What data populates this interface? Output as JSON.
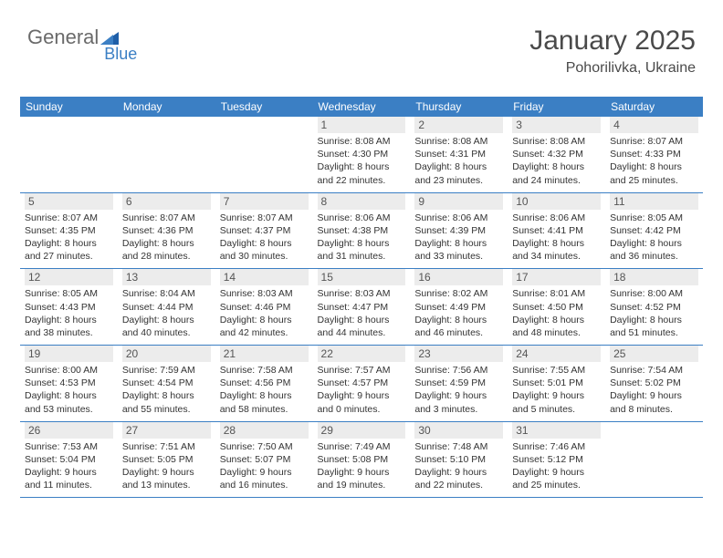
{
  "logo": {
    "text1": "General",
    "text2": "Blue"
  },
  "title": "January 2025",
  "location": "Pohorilivka, Ukraine",
  "colors": {
    "header_bg": "#3b7fc4",
    "header_fg": "#ffffff",
    "daynum_bg": "#ececec",
    "border": "#3b7fc4",
    "text": "#333333",
    "logo_gray": "#6a6a6a",
    "logo_blue": "#3b7fc4"
  },
  "dayHeaders": [
    "Sunday",
    "Monday",
    "Tuesday",
    "Wednesday",
    "Thursday",
    "Friday",
    "Saturday"
  ],
  "weeks": [
    [
      {
        "n": "",
        "l1": "",
        "l2": "",
        "l3": "",
        "l4": "",
        "empty": true
      },
      {
        "n": "",
        "l1": "",
        "l2": "",
        "l3": "",
        "l4": "",
        "empty": true
      },
      {
        "n": "",
        "l1": "",
        "l2": "",
        "l3": "",
        "l4": "",
        "empty": true
      },
      {
        "n": "1",
        "l1": "Sunrise: 8:08 AM",
        "l2": "Sunset: 4:30 PM",
        "l3": "Daylight: 8 hours",
        "l4": "and 22 minutes."
      },
      {
        "n": "2",
        "l1": "Sunrise: 8:08 AM",
        "l2": "Sunset: 4:31 PM",
        "l3": "Daylight: 8 hours",
        "l4": "and 23 minutes."
      },
      {
        "n": "3",
        "l1": "Sunrise: 8:08 AM",
        "l2": "Sunset: 4:32 PM",
        "l3": "Daylight: 8 hours",
        "l4": "and 24 minutes."
      },
      {
        "n": "4",
        "l1": "Sunrise: 8:07 AM",
        "l2": "Sunset: 4:33 PM",
        "l3": "Daylight: 8 hours",
        "l4": "and 25 minutes."
      }
    ],
    [
      {
        "n": "5",
        "l1": "Sunrise: 8:07 AM",
        "l2": "Sunset: 4:35 PM",
        "l3": "Daylight: 8 hours",
        "l4": "and 27 minutes."
      },
      {
        "n": "6",
        "l1": "Sunrise: 8:07 AM",
        "l2": "Sunset: 4:36 PM",
        "l3": "Daylight: 8 hours",
        "l4": "and 28 minutes."
      },
      {
        "n": "7",
        "l1": "Sunrise: 8:07 AM",
        "l2": "Sunset: 4:37 PM",
        "l3": "Daylight: 8 hours",
        "l4": "and 30 minutes."
      },
      {
        "n": "8",
        "l1": "Sunrise: 8:06 AM",
        "l2": "Sunset: 4:38 PM",
        "l3": "Daylight: 8 hours",
        "l4": "and 31 minutes."
      },
      {
        "n": "9",
        "l1": "Sunrise: 8:06 AM",
        "l2": "Sunset: 4:39 PM",
        "l3": "Daylight: 8 hours",
        "l4": "and 33 minutes."
      },
      {
        "n": "10",
        "l1": "Sunrise: 8:06 AM",
        "l2": "Sunset: 4:41 PM",
        "l3": "Daylight: 8 hours",
        "l4": "and 34 minutes."
      },
      {
        "n": "11",
        "l1": "Sunrise: 8:05 AM",
        "l2": "Sunset: 4:42 PM",
        "l3": "Daylight: 8 hours",
        "l4": "and 36 minutes."
      }
    ],
    [
      {
        "n": "12",
        "l1": "Sunrise: 8:05 AM",
        "l2": "Sunset: 4:43 PM",
        "l3": "Daylight: 8 hours",
        "l4": "and 38 minutes."
      },
      {
        "n": "13",
        "l1": "Sunrise: 8:04 AM",
        "l2": "Sunset: 4:44 PM",
        "l3": "Daylight: 8 hours",
        "l4": "and 40 minutes."
      },
      {
        "n": "14",
        "l1": "Sunrise: 8:03 AM",
        "l2": "Sunset: 4:46 PM",
        "l3": "Daylight: 8 hours",
        "l4": "and 42 minutes."
      },
      {
        "n": "15",
        "l1": "Sunrise: 8:03 AM",
        "l2": "Sunset: 4:47 PM",
        "l3": "Daylight: 8 hours",
        "l4": "and 44 minutes."
      },
      {
        "n": "16",
        "l1": "Sunrise: 8:02 AM",
        "l2": "Sunset: 4:49 PM",
        "l3": "Daylight: 8 hours",
        "l4": "and 46 minutes."
      },
      {
        "n": "17",
        "l1": "Sunrise: 8:01 AM",
        "l2": "Sunset: 4:50 PM",
        "l3": "Daylight: 8 hours",
        "l4": "and 48 minutes."
      },
      {
        "n": "18",
        "l1": "Sunrise: 8:00 AM",
        "l2": "Sunset: 4:52 PM",
        "l3": "Daylight: 8 hours",
        "l4": "and 51 minutes."
      }
    ],
    [
      {
        "n": "19",
        "l1": "Sunrise: 8:00 AM",
        "l2": "Sunset: 4:53 PM",
        "l3": "Daylight: 8 hours",
        "l4": "and 53 minutes."
      },
      {
        "n": "20",
        "l1": "Sunrise: 7:59 AM",
        "l2": "Sunset: 4:54 PM",
        "l3": "Daylight: 8 hours",
        "l4": "and 55 minutes."
      },
      {
        "n": "21",
        "l1": "Sunrise: 7:58 AM",
        "l2": "Sunset: 4:56 PM",
        "l3": "Daylight: 8 hours",
        "l4": "and 58 minutes."
      },
      {
        "n": "22",
        "l1": "Sunrise: 7:57 AM",
        "l2": "Sunset: 4:57 PM",
        "l3": "Daylight: 9 hours",
        "l4": "and 0 minutes."
      },
      {
        "n": "23",
        "l1": "Sunrise: 7:56 AM",
        "l2": "Sunset: 4:59 PM",
        "l3": "Daylight: 9 hours",
        "l4": "and 3 minutes."
      },
      {
        "n": "24",
        "l1": "Sunrise: 7:55 AM",
        "l2": "Sunset: 5:01 PM",
        "l3": "Daylight: 9 hours",
        "l4": "and 5 minutes."
      },
      {
        "n": "25",
        "l1": "Sunrise: 7:54 AM",
        "l2": "Sunset: 5:02 PM",
        "l3": "Daylight: 9 hours",
        "l4": "and 8 minutes."
      }
    ],
    [
      {
        "n": "26",
        "l1": "Sunrise: 7:53 AM",
        "l2": "Sunset: 5:04 PM",
        "l3": "Daylight: 9 hours",
        "l4": "and 11 minutes."
      },
      {
        "n": "27",
        "l1": "Sunrise: 7:51 AM",
        "l2": "Sunset: 5:05 PM",
        "l3": "Daylight: 9 hours",
        "l4": "and 13 minutes."
      },
      {
        "n": "28",
        "l1": "Sunrise: 7:50 AM",
        "l2": "Sunset: 5:07 PM",
        "l3": "Daylight: 9 hours",
        "l4": "and 16 minutes."
      },
      {
        "n": "29",
        "l1": "Sunrise: 7:49 AM",
        "l2": "Sunset: 5:08 PM",
        "l3": "Daylight: 9 hours",
        "l4": "and 19 minutes."
      },
      {
        "n": "30",
        "l1": "Sunrise: 7:48 AM",
        "l2": "Sunset: 5:10 PM",
        "l3": "Daylight: 9 hours",
        "l4": "and 22 minutes."
      },
      {
        "n": "31",
        "l1": "Sunrise: 7:46 AM",
        "l2": "Sunset: 5:12 PM",
        "l3": "Daylight: 9 hours",
        "l4": "and 25 minutes."
      },
      {
        "n": "",
        "l1": "",
        "l2": "",
        "l3": "",
        "l4": "",
        "empty": true
      }
    ]
  ]
}
